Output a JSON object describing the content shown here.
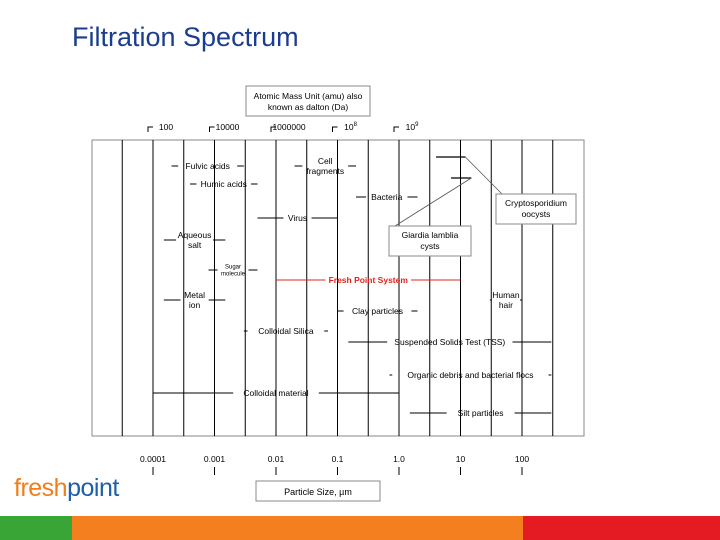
{
  "slide": {
    "title": "Filtration Spectrum",
    "logo": {
      "part1": "fresh",
      "part2": "point"
    }
  },
  "colors": {
    "title": "#1a3d8f",
    "highlight": "#e0241b",
    "logo_fresh": "#f07e1a",
    "logo_point": "#1d5fa8",
    "bar_green": "#3aa537",
    "bar_orange": "#f47f1f",
    "bar_red": "#e41b23"
  },
  "chart_data": {
    "type": "range-diagram",
    "top_axis_label": "Atomic Mass Unit (amu) also known as dalton (Da)",
    "top_ticks": [
      {
        "label": "100",
        "at_um": 0.0001
      },
      {
        "label": "10000",
        "at_um": 0.001
      },
      {
        "label": "1000000",
        "at_um": 0.01
      },
      {
        "label": "10",
        "sup": "8",
        "at_um": 0.1
      },
      {
        "label": "10",
        "sup": "9",
        "at_um": 1.0
      }
    ],
    "bottom_axis_label": "Particle Size, µm",
    "bottom_ticks": [
      {
        "label": "0.0001",
        "value": 0.0001
      },
      {
        "label": "0.001",
        "value": 0.001
      },
      {
        "label": "0.01",
        "value": 0.01
      },
      {
        "label": "0.1",
        "value": 0.1
      },
      {
        "label": "1.0",
        "value": 1.0
      },
      {
        "label": "10",
        "value": 10
      },
      {
        "label": "100",
        "value": 100
      }
    ],
    "x_scale": "log",
    "xlim": [
      2e-05,
      1000
    ],
    "ranges": [
      {
        "label": "Fulvic acids",
        "start": 0.0002,
        "end": 0.003
      },
      {
        "label": "Humic acids",
        "start": 0.0004,
        "end": 0.005
      },
      {
        "label": "Cell\nfragments",
        "start": 0.02,
        "end": 0.2
      },
      {
        "label": "Bacteria",
        "start": 0.2,
        "end": 2
      },
      {
        "label": "Virus",
        "start": 0.005,
        "end": 0.1
      },
      {
        "label": "Aqueous\nsalt",
        "start": 0.00015,
        "end": 0.0015
      },
      {
        "label": "Sugar\nmolecule",
        "start": 0.0008,
        "end": 0.005,
        "small": true
      },
      {
        "label": "Fresh Point System",
        "start": 0.01,
        "end": 10,
        "highlight": true
      },
      {
        "label": "Metal\nion",
        "start": 0.00015,
        "end": 0.0015
      },
      {
        "label": "Human\nhair",
        "start": 30,
        "end": 100
      },
      {
        "label": "Clay particles",
        "start": 0.1,
        "end": 2
      },
      {
        "label": "Colloidal Silica",
        "start": 0.003,
        "end": 0.07
      },
      {
        "label": "Suspended Solids Test (TSS)",
        "start": 0.15,
        "end": 300
      },
      {
        "label": "Organic debris and bacterial flocs",
        "start": 0.7,
        "end": 300
      },
      {
        "label": "Colloidal material",
        "start": 0.0001,
        "end": 1.0
      },
      {
        "label": "Silt particles",
        "start": 1.5,
        "end": 300
      }
    ],
    "callouts": [
      {
        "label": "Cryptosporidium\noocysts",
        "start": 4,
        "end": 12
      },
      {
        "label": "Giardia lamblia\ncysts",
        "start": 7,
        "end": 15
      }
    ]
  }
}
